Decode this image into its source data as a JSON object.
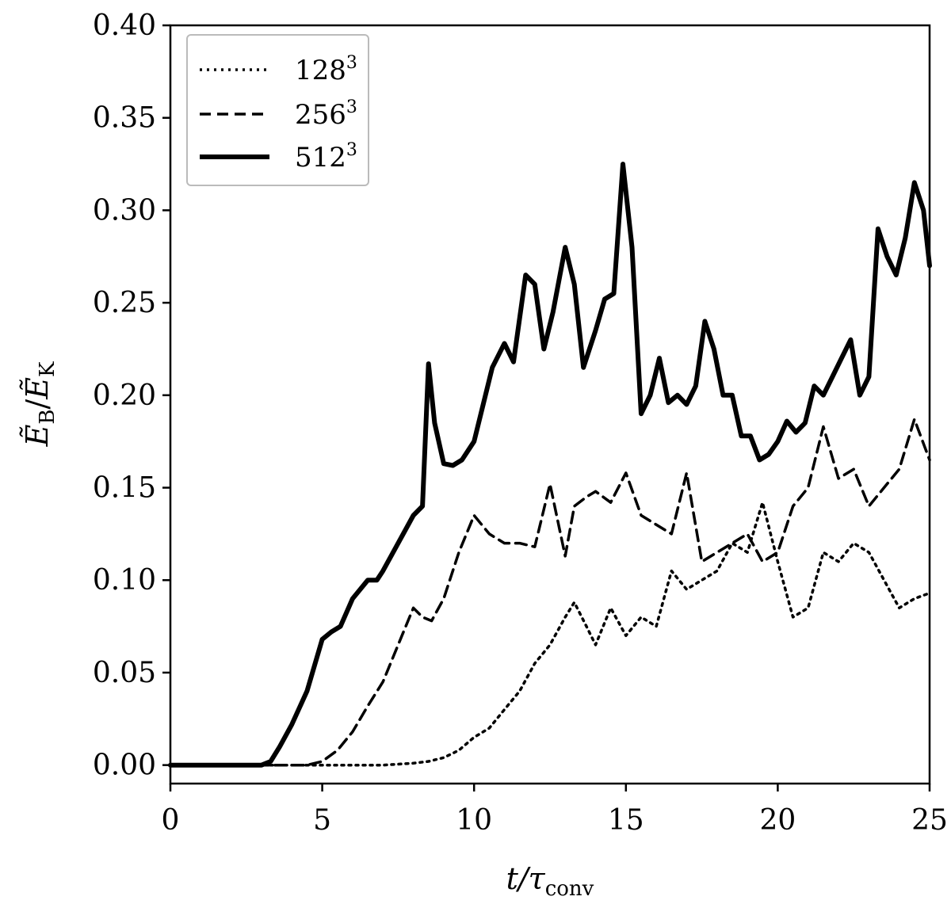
{
  "chart_data": {
    "type": "line",
    "xlabel": {
      "base": "t/τ",
      "sub": "conv"
    },
    "ylabel": {
      "num": "Ẽ",
      "num_sub": "B",
      "den": "Ẽ",
      "den_sub": "K"
    },
    "xlim": [
      0,
      25
    ],
    "ylim": [
      -0.01,
      0.4
    ],
    "xticks": [
      0,
      5,
      10,
      15,
      20,
      25
    ],
    "xtick_labels": [
      "0",
      "5",
      "10",
      "15",
      "20",
      "25"
    ],
    "yticks": [
      0.0,
      0.05,
      0.1,
      0.15,
      0.2,
      0.25,
      0.3,
      0.35,
      0.4
    ],
    "ytick_labels": [
      "0.00",
      "0.05",
      "0.10",
      "0.15",
      "0.20",
      "0.25",
      "0.30",
      "0.35",
      "0.40"
    ],
    "grid": false,
    "legend_position": "top-left",
    "series": [
      {
        "name": "128",
        "name_sup": "3",
        "style": "dotted",
        "color": "#000000",
        "x": [
          0,
          2,
          4,
          6,
          7,
          8,
          8.5,
          9,
          9.5,
          10,
          10.5,
          11,
          11.5,
          12,
          12.5,
          13,
          13.3,
          13.7,
          14,
          14.5,
          15,
          15.5,
          16,
          16.5,
          17,
          17.5,
          18,
          18.5,
          19,
          19.5,
          20,
          20.5,
          21,
          21.5,
          22,
          22.5,
          23,
          23.5,
          24,
          24.5,
          25
        ],
        "y": [
          0,
          0,
          0,
          0,
          0,
          0.001,
          0.002,
          0.004,
          0.008,
          0.015,
          0.02,
          0.03,
          0.04,
          0.055,
          0.065,
          0.08,
          0.088,
          0.075,
          0.065,
          0.085,
          0.07,
          0.08,
          0.075,
          0.105,
          0.095,
          0.1,
          0.105,
          0.12,
          0.115,
          0.142,
          0.11,
          0.08,
          0.085,
          0.115,
          0.11,
          0.12,
          0.115,
          0.1,
          0.085,
          0.09,
          0.093
        ]
      },
      {
        "name": "256",
        "name_sup": "3",
        "style": "dashed",
        "color": "#000000",
        "x": [
          0,
          2,
          4,
          4.5,
          5,
          5.5,
          6,
          6.5,
          7,
          7.5,
          8,
          8.3,
          8.6,
          9,
          9.5,
          10,
          10.5,
          11,
          11.5,
          12,
          12.5,
          13,
          13.3,
          13.7,
          14,
          14.5,
          15,
          15.5,
          16,
          16.5,
          17,
          17.5,
          18,
          18.5,
          19,
          19.5,
          20,
          20.5,
          21,
          21.5,
          22,
          22.5,
          23,
          23.5,
          24,
          24.5,
          25
        ],
        "y": [
          0,
          0,
          0,
          0,
          0.002,
          0.008,
          0.018,
          0.032,
          0.045,
          0.065,
          0.085,
          0.08,
          0.078,
          0.09,
          0.115,
          0.135,
          0.125,
          0.12,
          0.12,
          0.118,
          0.152,
          0.113,
          0.14,
          0.145,
          0.148,
          0.142,
          0.158,
          0.135,
          0.13,
          0.125,
          0.158,
          0.11,
          0.115,
          0.12,
          0.125,
          0.11,
          0.115,
          0.14,
          0.15,
          0.183,
          0.155,
          0.16,
          0.14,
          0.15,
          0.16,
          0.187,
          0.165
        ]
      },
      {
        "name": "512",
        "name_sup": "3",
        "style": "solid",
        "color": "#000000",
        "x": [
          0,
          2,
          2.5,
          3,
          3.3,
          3.6,
          4,
          4.5,
          5,
          5.3,
          5.6,
          6,
          6.5,
          6.8,
          7,
          7.5,
          8,
          8.3,
          8.5,
          8.7,
          9,
          9.3,
          9.6,
          10,
          10.3,
          10.6,
          11,
          11.3,
          11.7,
          12,
          12.3,
          12.6,
          13,
          13.3,
          13.6,
          14,
          14.3,
          14.6,
          14.9,
          15.2,
          15.5,
          15.8,
          16.1,
          16.4,
          16.7,
          17,
          17.3,
          17.6,
          17.9,
          18.2,
          18.5,
          18.8,
          19.1,
          19.4,
          19.7,
          20,
          20.3,
          20.6,
          20.9,
          21.2,
          21.5,
          21.8,
          22.1,
          22.4,
          22.7,
          23,
          23.3,
          23.6,
          23.9,
          24.2,
          24.5,
          24.8,
          25
        ],
        "y": [
          0,
          0,
          0,
          0,
          0.002,
          0.01,
          0.022,
          0.04,
          0.068,
          0.072,
          0.075,
          0.09,
          0.1,
          0.1,
          0.105,
          0.12,
          0.135,
          0.14,
          0.217,
          0.185,
          0.163,
          0.162,
          0.165,
          0.175,
          0.195,
          0.215,
          0.228,
          0.218,
          0.265,
          0.26,
          0.225,
          0.245,
          0.28,
          0.26,
          0.215,
          0.235,
          0.252,
          0.255,
          0.325,
          0.28,
          0.19,
          0.2,
          0.22,
          0.196,
          0.2,
          0.195,
          0.205,
          0.24,
          0.225,
          0.2,
          0.2,
          0.178,
          0.178,
          0.165,
          0.168,
          0.175,
          0.186,
          0.18,
          0.185,
          0.205,
          0.2,
          0.21,
          0.22,
          0.23,
          0.2,
          0.21,
          0.29,
          0.275,
          0.265,
          0.285,
          0.315,
          0.3,
          0.27
        ]
      }
    ]
  }
}
